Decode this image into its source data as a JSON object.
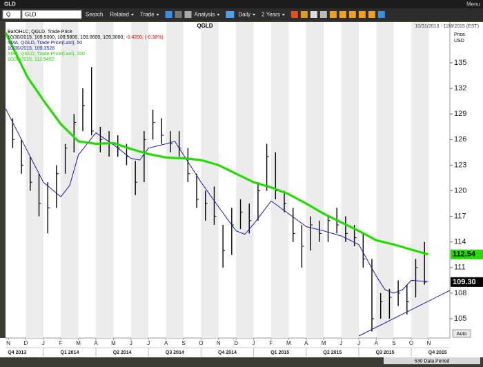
{
  "window": {
    "title": "GLD",
    "menu": "Menu"
  },
  "toolbar": {
    "symbol_prefix": "Q",
    "symbol": "GLD",
    "items": [
      "Search",
      "Related",
      "Trade",
      "Analysis",
      "Daily",
      "2 Years"
    ]
  },
  "status": "530 Data Period",
  "auto": "Auto",
  "chart_data": {
    "type": "ohlc",
    "title": "QGLD",
    "subtitle": "10/31/2013 - 12/8/2015 (EST)",
    "y_label": [
      "Price",
      "USD"
    ],
    "xlim": [
      -0.16,
      25.2
    ],
    "xticks": [
      {
        "value": 0,
        "label": "N"
      },
      {
        "value": 1,
        "label": "D"
      },
      {
        "value": 2,
        "label": "J"
      },
      {
        "value": 3,
        "label": "F"
      },
      {
        "value": 4,
        "label": "M"
      },
      {
        "value": 5,
        "label": "A"
      },
      {
        "value": 6,
        "label": "M"
      },
      {
        "value": 7,
        "label": "J"
      },
      {
        "value": 8,
        "label": "J"
      },
      {
        "value": 9,
        "label": "A"
      },
      {
        "value": 10,
        "label": "S"
      },
      {
        "value": 11,
        "label": "O"
      },
      {
        "value": 12,
        "label": "N"
      },
      {
        "value": 13,
        "label": "D"
      },
      {
        "value": 14,
        "label": "J"
      },
      {
        "value": 15,
        "label": "F"
      },
      {
        "value": 16,
        "label": "M"
      },
      {
        "value": 17,
        "label": "A"
      },
      {
        "value": 18,
        "label": "M"
      },
      {
        "value": 19,
        "label": "J"
      },
      {
        "value": 20,
        "label": "J"
      },
      {
        "value": 21,
        "label": "A"
      },
      {
        "value": 22,
        "label": "S"
      },
      {
        "value": 23,
        "label": "O"
      },
      {
        "value": 24,
        "label": "N"
      }
    ],
    "quarters": [
      {
        "value": -1,
        "label": "Q4 2013"
      },
      {
        "value": 2,
        "label": "Q1 2014"
      },
      {
        "value": 5,
        "label": "Q2 2014"
      },
      {
        "value": 8,
        "label": "Q3 2014"
      },
      {
        "value": 11,
        "label": "Q4 2014"
      },
      {
        "value": 14,
        "label": "Q1 2015"
      },
      {
        "value": 17,
        "label": "Q2 2015"
      },
      {
        "value": 20,
        "label": "Q3 2015"
      },
      {
        "value": 23,
        "label": "Q4 2015"
      }
    ],
    "ylim": [
      102.74,
      139.77
    ],
    "yticks": [
      105,
      108,
      111,
      114,
      117,
      120,
      123,
      126,
      129,
      132,
      135
    ],
    "grid": "alternate-months",
    "series": [
      {
        "name": "BarOHLC, QGLD, Trade Price",
        "color": "#000000",
        "last_line": "10/30/2015, 109.5000, 109.5800, 109.0600, 109.3000, ",
        "change": "-0.4200, (-0.38%)",
        "change_color": "#e00000",
        "x": [
          0.25,
          0.75,
          1.25,
          1.75,
          2.25,
          2.75,
          3.25,
          3.75,
          4.25,
          4.75,
          5.25,
          5.75,
          6.25,
          6.75,
          7.25,
          7.75,
          8.25,
          8.75,
          9.25,
          9.75,
          10.25,
          10.75,
          11.25,
          11.75,
          12.25,
          12.75,
          13.25,
          13.75,
          14.25,
          14.75,
          15.25,
          15.75,
          16.25,
          16.75,
          17.25,
          17.75,
          18.25,
          18.75,
          19.25,
          19.75,
          20.25,
          20.75,
          21.25,
          21.75,
          22.25,
          22.75,
          23.25,
          23.75
        ],
        "high": [
          128.5,
          126,
          124,
          122,
          121,
          123,
          125.5,
          129,
          132,
          134.5,
          127.5,
          127,
          126.5,
          125.5,
          123.5,
          127,
          129.5,
          128.5,
          127,
          127,
          125,
          122,
          120,
          120.5,
          116,
          118,
          119,
          118.5,
          121,
          125.5,
          124.5,
          120,
          118,
          116,
          117,
          116.5,
          117,
          118,
          117,
          116,
          115,
          112,
          108,
          108.5,
          109.5,
          109,
          112,
          114
        ],
        "low": [
          125,
          122,
          120,
          117,
          115,
          118,
          122,
          124.5,
          127,
          126.5,
          124.5,
          124,
          124,
          123,
          119.5,
          121,
          126,
          125.5,
          124.5,
          124,
          121,
          118,
          116.5,
          116,
          111,
          112.5,
          115.5,
          115,
          116.5,
          120,
          119,
          117.5,
          114,
          111,
          113,
          114,
          114,
          115,
          114,
          113.5,
          111,
          103.5,
          105,
          105,
          106.5,
          105.5,
          107.5,
          109
        ],
        "close": [
          126,
          123,
          121,
          118.5,
          118,
          122,
          125,
          128,
          130,
          127,
          126,
          125.5,
          125,
          124,
          121,
          126,
          128,
          126.5,
          125.5,
          125,
          122,
          119,
          118.5,
          117,
          113,
          116,
          117.5,
          116.5,
          120,
          124,
          120,
          118.5,
          115,
          113.5,
          116,
          115,
          116.5,
          116,
          115,
          114.5,
          112,
          105,
          107,
          107.5,
          108,
          107,
          111,
          109.3
        ]
      },
      {
        "name": "SMA, QGLD, Trade Price(Last), 50",
        "color": "#1a1aa0",
        "last_line": "10/30/2015, 109.3526",
        "x": [
          -0.15,
          1,
          2,
          3,
          3.5,
          4,
          5,
          6,
          7,
          7.5,
          8,
          9,
          9.5,
          10,
          11,
          12,
          13,
          13.5,
          14,
          15,
          16,
          17,
          18,
          19,
          20,
          21,
          21.5,
          22,
          22.5,
          23,
          23.95
        ],
        "values": [
          129.6,
          125,
          121,
          119.3,
          120.6,
          124.2,
          126.8,
          125.4,
          123.8,
          123.6,
          125,
          125.5,
          125.8,
          124.2,
          121,
          118.1,
          115.3,
          114.9,
          116.1,
          118.8,
          117.3,
          115.8,
          115.3,
          114.7,
          113.7,
          110,
          108.4,
          108,
          108.4,
          109.5,
          109.3526
        ]
      },
      {
        "name": "SMA, QGLD, Trade Price(Last), 200",
        "color": "#22dd00",
        "last_line": "10/30/2015, 112.5492",
        "x": [
          -0.15,
          1.1,
          2,
          3,
          4,
          5,
          6,
          7,
          8,
          9,
          10,
          11,
          12,
          13,
          14,
          15,
          16,
          17,
          18,
          19,
          20,
          21,
          22,
          23,
          23.95
        ],
        "values": [
          138.5,
          133.3,
          130.6,
          127.8,
          125.8,
          125.5,
          125.6,
          124.9,
          124.3,
          123.9,
          123.8,
          123.6,
          123,
          122,
          121,
          120.4,
          119.6,
          118.5,
          117.3,
          116.3,
          115.3,
          114.2,
          113.7,
          113.1,
          112.5492
        ]
      }
    ],
    "price_tags": [
      {
        "value": 112.54,
        "label": "112.54",
        "color": "#22dd00",
        "text_color": "#000000"
      },
      {
        "value": 109.3,
        "label": "109.30",
        "color": "#000000",
        "text_color": "#ffffff"
      }
    ]
  }
}
